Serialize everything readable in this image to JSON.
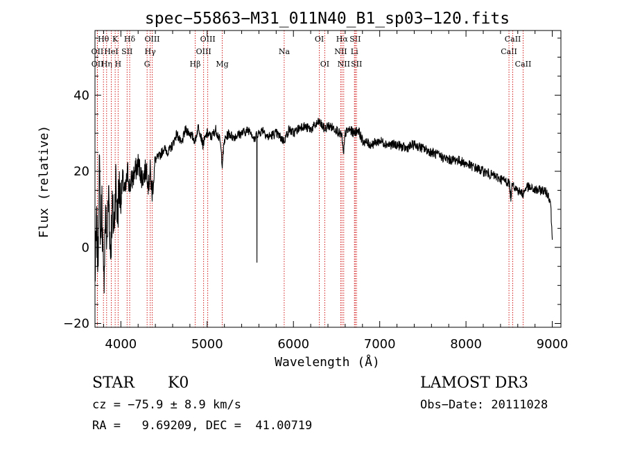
{
  "chart_data": {
    "type": "line",
    "title": "spec−55863−M31_011N40_B1_sp03−120.fits",
    "xlabel": "Wavelength (Å)",
    "ylabel": "Flux (relative)",
    "xlim": [
      3700,
      9100
    ],
    "ylim": [
      -21,
      57
    ],
    "x_ticks": [
      4000,
      5000,
      6000,
      7000,
      8000,
      9000
    ],
    "x_tick_labels": [
      "4000",
      "5000",
      "6000",
      "7000",
      "8000",
      "9000"
    ],
    "y_ticks": [
      -20,
      0,
      20,
      40
    ],
    "y_tick_labels": [
      "−20",
      "0",
      "20",
      "40"
    ],
    "series": [
      {
        "name": "spectrum",
        "x": [
          3700,
          3720,
          3735,
          3750,
          3765,
          3780,
          3800,
          3820,
          3840,
          3860,
          3880,
          3900,
          3920,
          3940,
          3960,
          3980,
          4000,
          4020,
          4050,
          4080,
          4100,
          4150,
          4200,
          4250,
          4300,
          4320,
          4340,
          4360,
          4400,
          4450,
          4500,
          4550,
          4600,
          4650,
          4700,
          4750,
          4800,
          4860,
          4900,
          4950,
          5000,
          5050,
          5100,
          5150,
          5175,
          5200,
          5250,
          5300,
          5400,
          5500,
          5550,
          5575,
          5577,
          5579,
          5600,
          5650,
          5700,
          5800,
          5890,
          5950,
          6000,
          6100,
          6200,
          6300,
          6363,
          6400,
          6500,
          6563,
          6580,
          6600,
          6650,
          6700,
          6750,
          6800,
          6900,
          7000,
          7100,
          7200,
          7300,
          7400,
          7500,
          7600,
          7700,
          7800,
          7900,
          8000,
          8100,
          8200,
          8300,
          8400,
          8500,
          8520,
          8542,
          8560,
          8600,
          8662,
          8700,
          8800,
          8900,
          8950,
          8980,
          9000
        ],
        "y": [
          -8,
          5,
          -4,
          22,
          3,
          12,
          -11,
          8,
          2,
          15,
          -2,
          10,
          5,
          18,
          8,
          16,
          12,
          18,
          14,
          20,
          16,
          19,
          22,
          18,
          21,
          16,
          20,
          14,
          23,
          24,
          26,
          25,
          27,
          30,
          27,
          31,
          30,
          28,
          32,
          27,
          30,
          29,
          31,
          28,
          22,
          28,
          30,
          29,
          30,
          31,
          28,
          30,
          -4,
          30,
          30,
          31,
          29,
          30,
          28,
          31,
          30,
          32,
          31,
          33,
          31,
          32,
          31,
          29,
          24,
          30,
          31,
          30,
          31,
          28,
          27,
          28,
          27,
          27,
          26,
          27,
          26,
          25,
          24,
          23,
          23,
          22,
          21,
          20,
          19,
          18,
          17,
          13,
          18,
          16,
          15,
          14,
          16,
          15,
          15,
          14,
          12,
          2
        ]
      }
    ],
    "line_colors": {
      "spectrum": "#000000",
      "marker_lines": "#cc0000"
    },
    "marker_lines": [
      {
        "label": "Hθ",
        "wavelength": 3798,
        "row": 0
      },
      {
        "label": "OII",
        "wavelength": 3727,
        "row": 1
      },
      {
        "label": "OII",
        "wavelength": 3729,
        "row": 2
      },
      {
        "label": "Hη",
        "wavelength": 3835,
        "row": 2
      },
      {
        "label": "HeI",
        "wavelength": 3889,
        "row": 1
      },
      {
        "label": "K",
        "wavelength": 3934,
        "row": 0
      },
      {
        "label": "H",
        "wavelength": 3968,
        "row": 2
      },
      {
        "label": "SII",
        "wavelength": 4072,
        "row": 1
      },
      {
        "label": "Hδ",
        "wavelength": 4102,
        "row": 0
      },
      {
        "label": "G",
        "wavelength": 4304,
        "row": 2
      },
      {
        "label": "Hγ",
        "wavelength": 4340,
        "row": 1
      },
      {
        "label": "OIII",
        "wavelength": 4363,
        "row": 0
      },
      {
        "label": "Hβ",
        "wavelength": 4861,
        "row": 2
      },
      {
        "label": "OIII",
        "wavelength": 4959,
        "row": 1
      },
      {
        "label": "OIII",
        "wavelength": 5007,
        "row": 0
      },
      {
        "label": "Mg",
        "wavelength": 5175,
        "row": 2
      },
      {
        "label": "Na",
        "wavelength": 5893,
        "row": 1
      },
      {
        "label": "OI",
        "wavelength": 6300,
        "row": 0
      },
      {
        "label": "OI",
        "wavelength": 6363,
        "row": 2
      },
      {
        "label": "NII",
        "wavelength": 6548,
        "row": 1
      },
      {
        "label": "Hα",
        "wavelength": 6563,
        "row": 0
      },
      {
        "label": "NII",
        "wavelength": 6583,
        "row": 2
      },
      {
        "label": "Li",
        "wavelength": 6707,
        "row": 1
      },
      {
        "label": "SII",
        "wavelength": 6716,
        "row": 0
      },
      {
        "label": "SII",
        "wavelength": 6731,
        "row": 2
      },
      {
        "label": "CaII",
        "wavelength": 8498,
        "row": 1
      },
      {
        "label": "CaII",
        "wavelength": 8542,
        "row": 0
      },
      {
        "label": "CaII",
        "wavelength": 8662,
        "row": 2
      }
    ]
  },
  "info": {
    "class_label": "STAR",
    "subclass_label": "K0",
    "survey_label": "LAMOST DR3",
    "cz_text": "cz = −75.9 ± 8.9 km/s",
    "obs_date_text": "Obs−Date: 20111028",
    "radec_text": "RA =   9.69209, DEC =  41.00719"
  }
}
